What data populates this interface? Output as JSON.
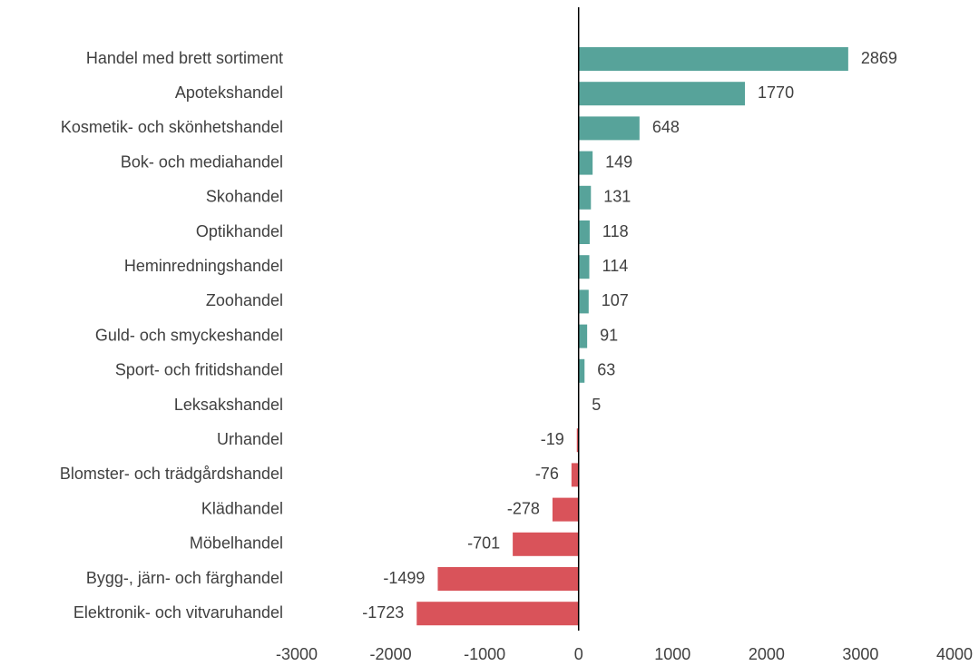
{
  "chart_data": {
    "type": "barh",
    "categories": [
      "Handel med brett sortiment",
      "Apotekshandel",
      "Kosmetik- och skönhetshandel",
      "Bok- och mediahandel",
      "Skohandel",
      "Optikhandel",
      "Heminredningshandel",
      "Zoohandel",
      "Guld- och smyckeshandel",
      "Sport- och fritidshandel",
      "Leksakshandel",
      "Urhandel",
      "Blomster- och trädgårdshandel",
      "Klädhandel",
      "Möbelhandel",
      "Bygg-, järn- och färghandel",
      "Elektronik- och vitvaruhandel"
    ],
    "values": [
      2869,
      1770,
      648,
      149,
      131,
      118,
      114,
      107,
      91,
      63,
      5,
      -19,
      -76,
      -278,
      -701,
      -1499,
      -1723
    ],
    "positive_color": "#57a39a",
    "negative_color": "#d9535a",
    "xlim": [
      -3000,
      4000
    ],
    "xticks": [
      -3000,
      -2000,
      -1000,
      0,
      1000,
      2000,
      3000,
      4000
    ],
    "grid": false
  }
}
